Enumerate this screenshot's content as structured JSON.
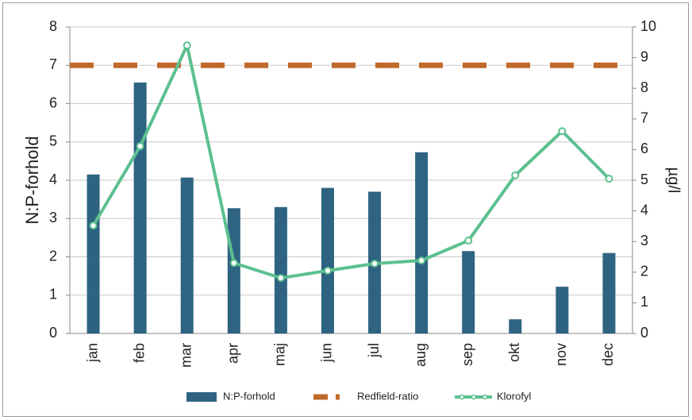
{
  "chart_data": {
    "type": "bar",
    "categories": [
      "jan",
      "feb",
      "mar",
      "apr",
      "maj",
      "jun",
      "jul",
      "aug",
      "sep",
      "okt",
      "nov",
      "dec"
    ],
    "series": [
      {
        "name": "N:P-forhold",
        "type": "bar",
        "color": "#2e6382",
        "values": [
          4.15,
          6.55,
          4.07,
          3.27,
          3.3,
          3.8,
          3.7,
          4.73,
          2.15,
          0.37,
          1.22,
          2.1
        ]
      },
      {
        "name": "Klorofyl",
        "type": "line",
        "axis": "y2",
        "color": "#5cc08f",
        "values": [
          3.52,
          6.11,
          9.4,
          2.3,
          1.81,
          2.05,
          2.28,
          2.38,
          3.03,
          5.16,
          6.6,
          5.05
        ]
      }
    ],
    "reference_line": {
      "name": "Redfield-ratio",
      "value": 7,
      "color": "#c0692a"
    },
    "ylabel": "N:P-forhold",
    "y2label": "µg/l",
    "ylim": [
      0,
      8
    ],
    "yticks": [
      0,
      1,
      2,
      3,
      4,
      5,
      6,
      7,
      8
    ],
    "y2lim": [
      0,
      10
    ],
    "y2ticks": [
      0,
      1,
      2,
      3,
      4,
      5,
      6,
      7,
      8,
      9,
      10
    ],
    "grid": true,
    "legend": "bottom"
  }
}
